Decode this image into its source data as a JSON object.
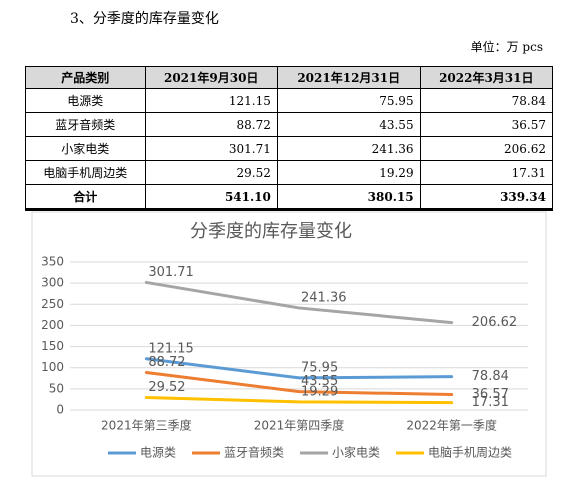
{
  "heading": "3、分季度的库存量变化",
  "unit": "单位：万 pcs",
  "table": {
    "header": [
      "产品类别",
      "2021年9月30日",
      "2021年12月31日",
      "2022年3月31日"
    ],
    "rows": [
      [
        "电源类",
        "121.15",
        "75.95",
        "78.84"
      ],
      [
        "蓝牙音频类",
        "88.72",
        "43.55",
        "36.57"
      ],
      [
        "小家电类",
        "301.71",
        "241.36",
        "206.62"
      ],
      [
        "电脑手机周边类",
        "29.52",
        "19.29",
        "17.31"
      ],
      [
        "合计",
        "541.10",
        "380.15",
        "339.34"
      ]
    ]
  },
  "chart_data": {
    "type": "line",
    "title": "分季度的库存量变化",
    "categories": [
      "2021年第三季度",
      "2021年第四季度",
      "2022年第一季度"
    ],
    "series": [
      {
        "name": "电源类",
        "color": "#5b9bd5",
        "values": [
          121.15,
          75.95,
          78.84
        ]
      },
      {
        "name": "蓝牙音频类",
        "color": "#ed7d31",
        "values": [
          88.72,
          43.55,
          36.57
        ]
      },
      {
        "name": "小家电类",
        "color": "#a5a5a5",
        "values": [
          301.71,
          241.36,
          206.62
        ]
      },
      {
        "name": "电脑手机周边类",
        "color": "#ffc000",
        "values": [
          29.52,
          19.29,
          17.31
        ]
      }
    ],
    "ylim": [
      0,
      350
    ],
    "yticks": [
      0,
      50,
      100,
      150,
      200,
      250,
      300,
      350
    ],
    "grid": true
  }
}
